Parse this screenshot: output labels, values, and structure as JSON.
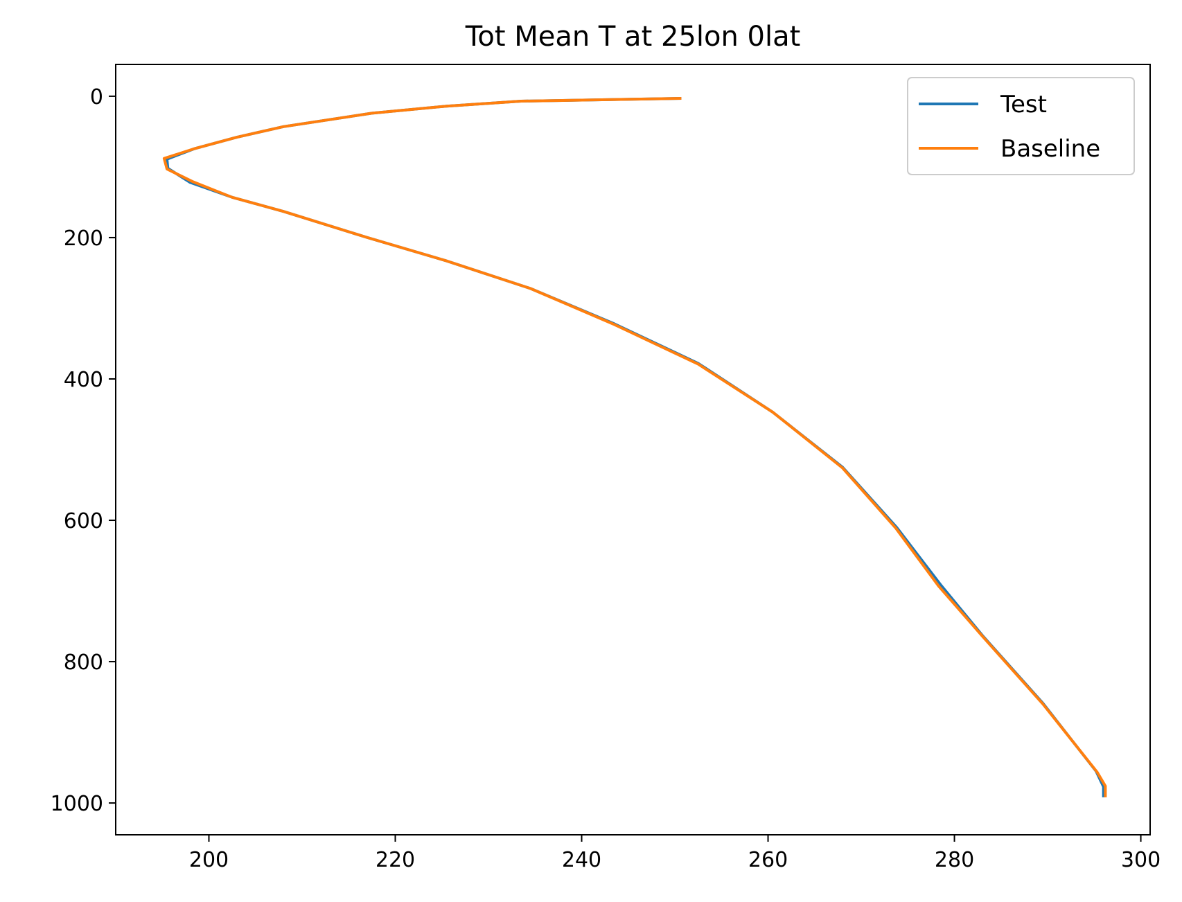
{
  "chart_data": {
    "type": "line",
    "title": "Tot Mean T at 25lon 0lat",
    "xlabel": "",
    "ylabel": "",
    "xlim": [
      190,
      301
    ],
    "ylim": [
      1045,
      -45
    ],
    "y_inverted": true,
    "grid": false,
    "legend_position": "top-right",
    "xticks": [
      200,
      220,
      240,
      260,
      280,
      300
    ],
    "yticks": [
      0,
      200,
      400,
      600,
      800,
      1000
    ],
    "series": [
      {
        "name": "Test",
        "color": "#1f77b4",
        "points": [
          [
            250.7,
            3
          ],
          [
            233.5,
            7
          ],
          [
            225.5,
            14
          ],
          [
            217.5,
            24
          ],
          [
            208.0,
            43
          ],
          [
            203.0,
            58
          ],
          [
            198.5,
            74
          ],
          [
            195.5,
            89
          ],
          [
            195.6,
            102
          ],
          [
            198.0,
            122
          ],
          [
            202.5,
            143
          ],
          [
            208.0,
            163
          ],
          [
            217.0,
            200
          ],
          [
            225.5,
            233
          ],
          [
            234.5,
            272
          ],
          [
            243.5,
            322
          ],
          [
            252.5,
            378
          ],
          [
            260.5,
            447
          ],
          [
            268.0,
            525
          ],
          [
            273.8,
            610
          ],
          [
            278.5,
            691
          ],
          [
            283.0,
            763
          ],
          [
            289.5,
            859
          ],
          [
            295.2,
            955
          ],
          [
            296.0,
            977
          ],
          [
            296.0,
            992
          ]
        ]
      },
      {
        "name": "Baseline",
        "color": "#ff7f0e",
        "points": [
          [
            250.7,
            3
          ],
          [
            233.5,
            7
          ],
          [
            225.5,
            14
          ],
          [
            217.5,
            24
          ],
          [
            208.0,
            43
          ],
          [
            203.0,
            58
          ],
          [
            198.5,
            74
          ],
          [
            195.2,
            88
          ],
          [
            195.5,
            103
          ],
          [
            198.3,
            121
          ],
          [
            202.5,
            143
          ],
          [
            208.0,
            163
          ],
          [
            217.0,
            200
          ],
          [
            225.5,
            233
          ],
          [
            234.5,
            272
          ],
          [
            243.5,
            323
          ],
          [
            252.5,
            379
          ],
          [
            260.5,
            447
          ],
          [
            268.0,
            526
          ],
          [
            273.7,
            611
          ],
          [
            278.3,
            693
          ],
          [
            283.0,
            764
          ],
          [
            289.5,
            860
          ],
          [
            295.3,
            956
          ],
          [
            296.2,
            976
          ],
          [
            296.2,
            992
          ]
        ]
      }
    ]
  }
}
